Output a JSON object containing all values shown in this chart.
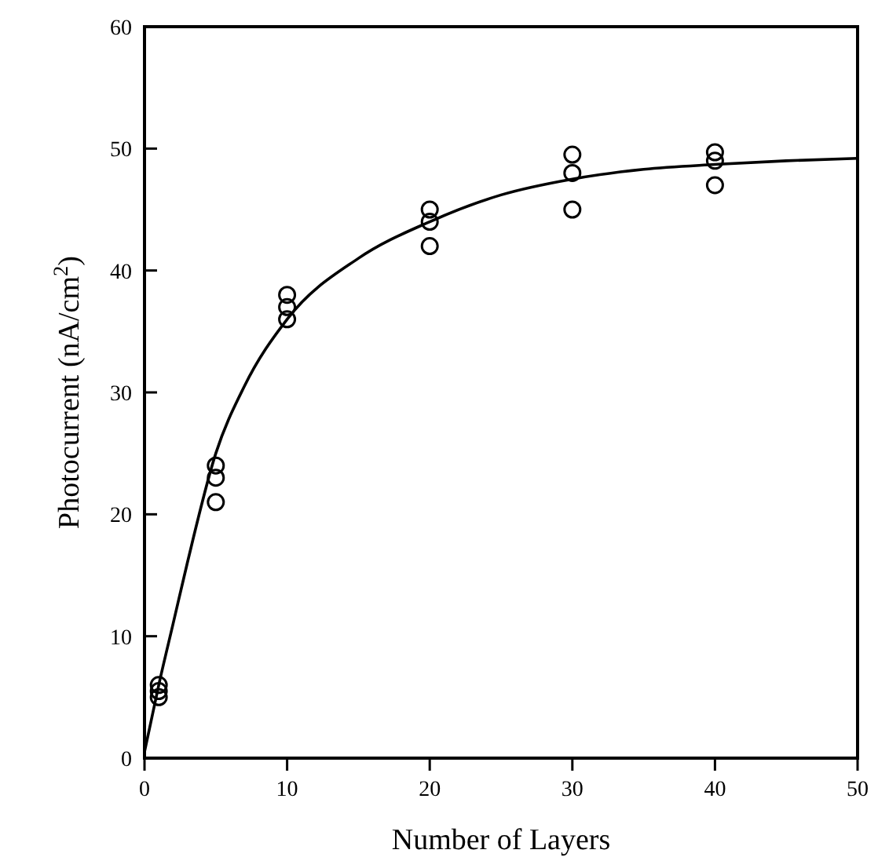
{
  "chart_data": {
    "type": "scatter",
    "xlabel": "Number of Layers",
    "ylabel": "Photocurrent (nA/cm$^{2}$)",
    "xlim": [
      0,
      50
    ],
    "ylim": [
      0,
      60
    ],
    "xticks": [
      0,
      10,
      20,
      30,
      40,
      50
    ],
    "yticks": [
      0,
      10,
      20,
      30,
      40,
      50,
      60
    ],
    "grid": false,
    "series": [
      {
        "marker": "circle",
        "color": "#000000",
        "x": [
          1,
          1,
          1,
          5,
          5,
          5,
          10,
          10,
          10,
          20,
          20,
          20,
          30,
          30,
          30,
          40,
          40,
          40
        ],
        "values": [
          6,
          5.5,
          5,
          24,
          23,
          21,
          38,
          37,
          36,
          45,
          44,
          42,
          49.5,
          48,
          45,
          49.7,
          49,
          47
        ]
      },
      {
        "type": "line",
        "marker": "none",
        "color": "#000000",
        "line_style": "solid",
        "x": [
          0,
          1,
          2,
          3,
          5,
          7,
          10,
          15,
          20,
          25,
          30,
          35,
          40,
          45,
          50
        ],
        "values": [
          0.5,
          6,
          11,
          16,
          25,
          30.5,
          36,
          41,
          44,
          46.2,
          47.5,
          48.3,
          48.7,
          49,
          49.2
        ]
      }
    ]
  }
}
